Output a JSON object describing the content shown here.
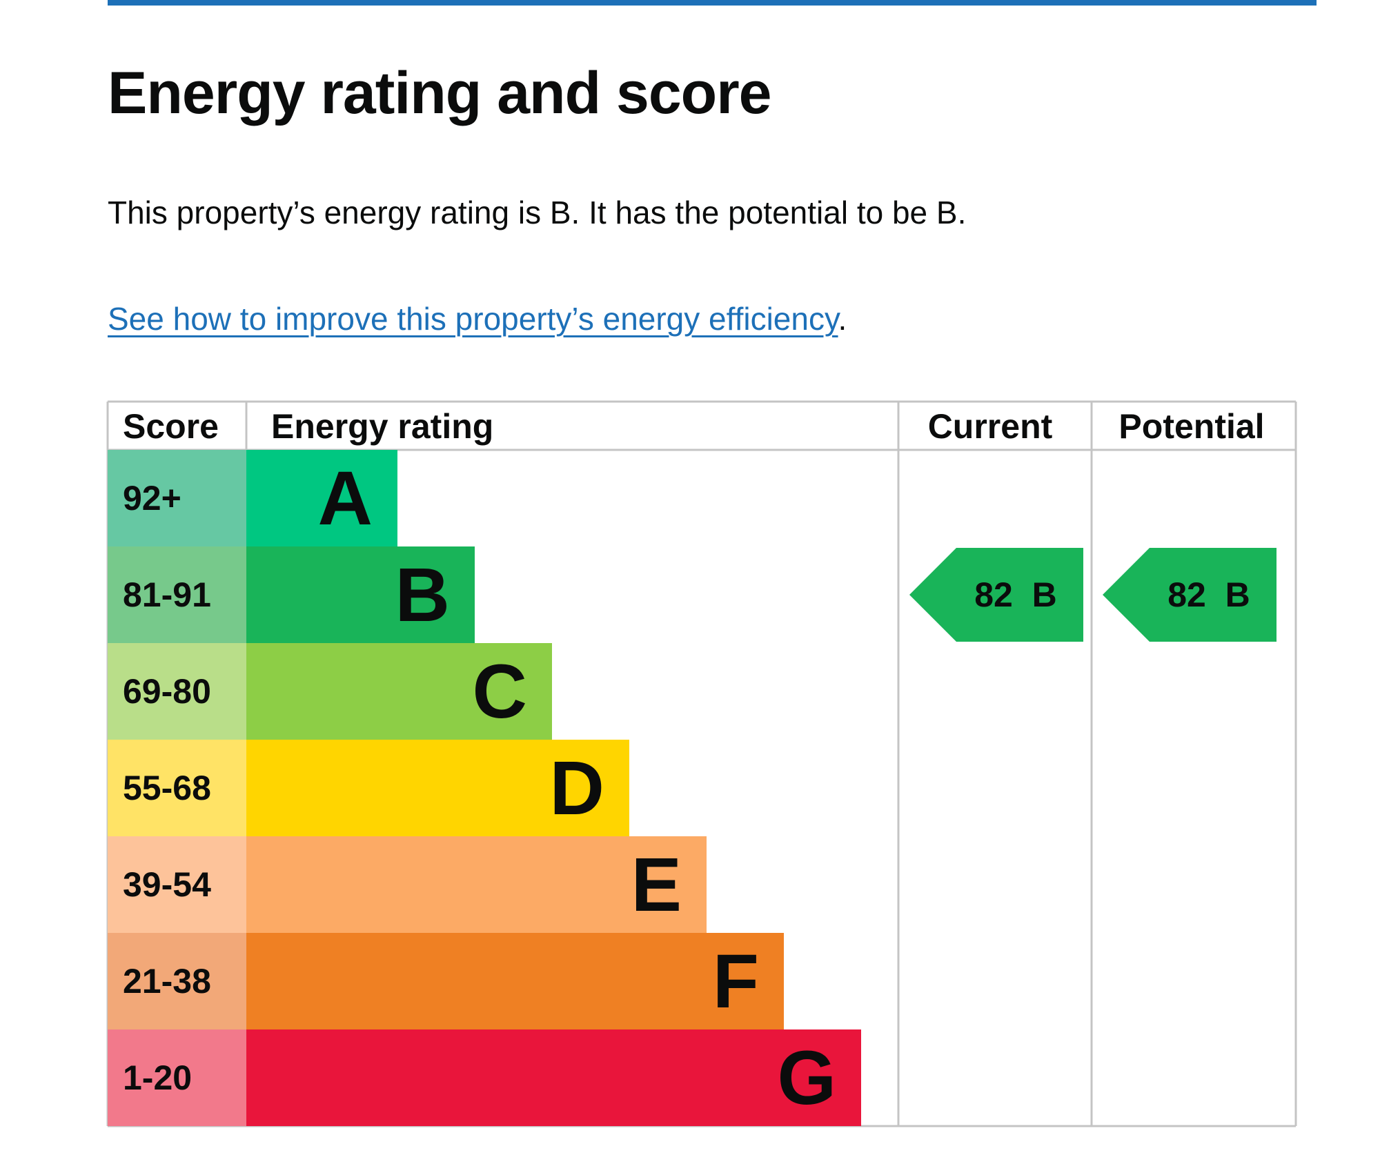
{
  "page": {
    "title": "Energy rating and score",
    "summary": "This property’s energy rating is B. It has the potential to be B.",
    "improve_link": "See how to improve this property’s energy efficiency",
    "improve_suffix": "."
  },
  "chart_data": {
    "type": "table",
    "headers": {
      "score": "Score",
      "rating": "Energy rating",
      "current": "Current",
      "potential": "Potential"
    },
    "bands": [
      {
        "score": "92+",
        "letter": "A",
        "score_color": "#66c8a3",
        "bar_color": "#00c781",
        "score_text_color": "#0b0c0c",
        "letter_color": "#0b0c0c"
      },
      {
        "score": "81-91",
        "letter": "B",
        "score_color": "#77c98b",
        "bar_color": "#19b459",
        "score_text_color": "#0b0c0c",
        "letter_color": "#0b0c0c"
      },
      {
        "score": "69-80",
        "letter": "C",
        "score_color": "#b9de89",
        "bar_color": "#8dce46",
        "score_text_color": "#0b0c0c",
        "letter_color": "#0b0c0c"
      },
      {
        "score": "55-68",
        "letter": "D",
        "score_color": "#ffe366",
        "bar_color": "#ffd500",
        "score_text_color": "#0b0c0c",
        "letter_color": "#0b0c0c"
      },
      {
        "score": "39-54",
        "letter": "E",
        "score_color": "#fdc39a",
        "bar_color": "#fcaa65",
        "score_text_color": "#0b0c0c",
        "letter_color": "#0b0c0c"
      },
      {
        "score": "21-38",
        "letter": "F",
        "score_color": "#f2a878",
        "bar_color": "#ef8023",
        "score_text_color": "#0b0c0c",
        "letter_color": "#0b0c0c"
      },
      {
        "score": "1-20",
        "letter": "G",
        "score_color": "#f2798b",
        "bar_color": "#e9153b",
        "score_text_color": "#0b0c0c",
        "letter_color": "#0b0c0c"
      }
    ],
    "current": {
      "score": 82,
      "letter": "B",
      "label": "82  B",
      "color": "#19b459"
    },
    "potential": {
      "score": 82,
      "letter": "B",
      "label": "82  B",
      "color": "#19b459"
    }
  },
  "colors": {
    "link": "#1d70b8",
    "rule": "#1d70b8",
    "grid": "#c4c4c4",
    "text": "#0b0c0c"
  }
}
